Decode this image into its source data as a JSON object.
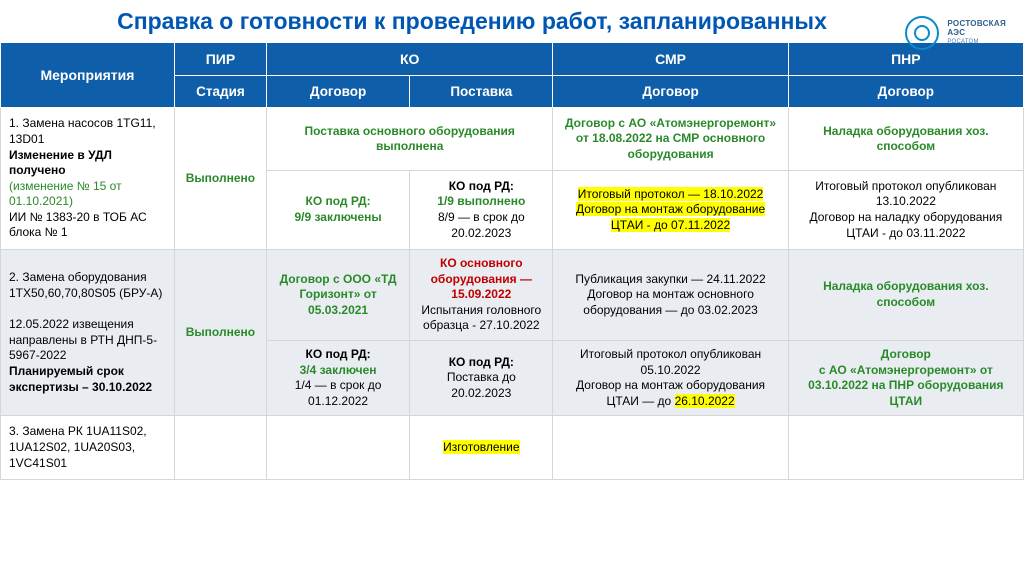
{
  "title": "Справка о готовности к проведению работ, запланированных",
  "logo": {
    "line1": "РОСТОВСКАЯ",
    "line2": "АЭС",
    "line3": "РОСАТОМ"
  },
  "headers": {
    "act": "Мероприятия",
    "pir": "ПИР",
    "ko": "КО",
    "smr": "СМР",
    "pnr": "ПНР",
    "sub_stage": "Стадия",
    "sub_dogovor": "Договор",
    "sub_postavka": "Поставка"
  },
  "rows": {
    "r1": {
      "act_l1": "1. Замена насосов 1TG11, 13D01",
      "act_l2": "Изменение в УДЛ получено",
      "act_l3": "(изменение № 15 от 01.10.2021)",
      "act_l4": "ИИ № 1383-20 в ТОБ АС блока № 1",
      "stage": "Выполнено",
      "ko_merge_top": "Поставка основного оборудования выполнена",
      "ko_d_bot": "КО под РД:\n9/9 заключены",
      "ko_p_bot_l1": "КО под РД:",
      "ko_p_bot_l2": "1/9 выполнено",
      "ko_p_bot_l3": "8/9 — в срок до 20.02.2023",
      "smr_top": "Договор с АО «Атомэнергоремонт» от 18.08.2022 на СМР основного оборудования",
      "smr_bot_l1": "Итоговый протокол — 18.10.2022",
      "smr_bot_l2": "Договор на монтаж оборудование ЦТАИ - до 07.11.2022",
      "pnr_top": "Наладка оборудования хоз. способом",
      "pnr_bot": "Итоговый протокол опубликован 13.10.2022\nДоговор на наладку оборудования ЦТАИ - до 03.11.2022"
    },
    "r2": {
      "act_l1": "2. Замена оборудования 1TX50,60,70,80S05 (БРУ-А)",
      "act_l2": "12.05.2022 извещения направлены в РТН ДНП-5-5967-2022",
      "act_l3": "Планируемый срок экспертизы – 30.10.2022",
      "stage": "Выполнено",
      "ko_d_top": "Договор с ООО «ТД Горизонт» от 05.03.2021",
      "ko_p_top_l1": "КО основного оборудования — 15.09.2022",
      "ko_p_top_l2": "Испытания головного образца - 27.10.2022",
      "ko_d_bot_l1": "КО под РД:",
      "ko_d_bot_l2": "3/4 заключен",
      "ko_d_bot_l3": "1/4 — в срок до 01.12.2022",
      "ko_p_bot_l1": "КО под РД:",
      "ko_p_bot_l2": "Поставка до 20.02.2023",
      "smr_top": "Публикация закупки — 24.11.2022\nДоговор на монтаж основного оборудования — до 03.02.2023",
      "smr_bot_l1": "Итоговый протокол опубликован 05.10.2022",
      "smr_bot_l2": "Договор на монтаж оборудования ЦТАИ — до ",
      "smr_bot_l3": "26.10.2022",
      "pnr_top": "Наладка оборудования хоз. способом",
      "pnr_bot": "Договор\nс АО «Атомэнергоремонт» от 03.10.2022  на ПНР оборудования ЦТАИ"
    },
    "r3": {
      "act_l1": "3. Замена РК 1UA11S02, 1UA12S02, 1UA20S03, 1VC41S01",
      "ko_p": "Изготовление"
    }
  }
}
